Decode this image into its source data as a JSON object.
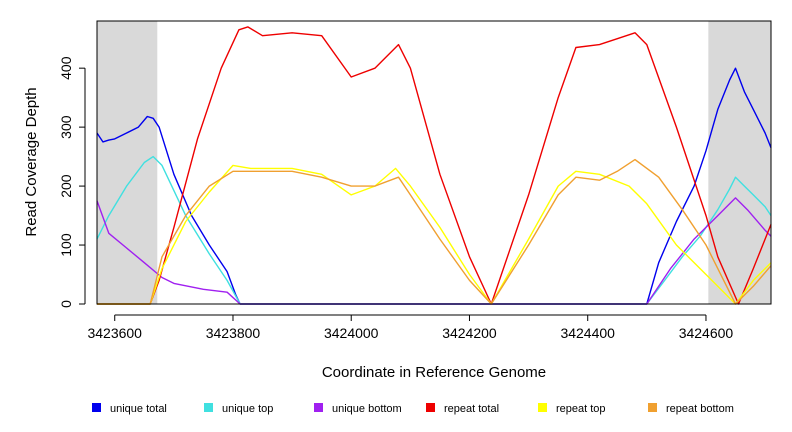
{
  "chart_data": {
    "type": "line",
    "title": "",
    "xlabel": "Coordinate in Reference Genome",
    "ylabel": "Read Coverage Depth",
    "xlim": [
      3423570,
      3424710
    ],
    "ylim": [
      0,
      480
    ],
    "x_ticks": [
      3423600,
      3423800,
      3424000,
      3424200,
      3424400,
      3424600
    ],
    "x_tick_labels": [
      "3423600",
      "3423800",
      "3424000",
      "3424200",
      "3424400",
      "3424600"
    ],
    "y_ticks": [
      0,
      100,
      200,
      300,
      400
    ],
    "y_tick_labels": [
      "0",
      "100",
      "200",
      "300",
      "400"
    ],
    "shaded_regions": [
      {
        "x0": 3423570,
        "x1": 3423672,
        "color": "#d9d9d9"
      },
      {
        "x0": 3424604,
        "x1": 3424710,
        "color": "#d9d9d9"
      }
    ],
    "legend_position": "bottom",
    "series": [
      {
        "name": "unique total",
        "color": "#0000ee",
        "x": [
          3423570,
          3423580,
          3423590,
          3423600,
          3423620,
          3423640,
          3423655,
          3423665,
          3423675,
          3423700,
          3423730,
          3423760,
          3423790,
          3423805,
          3423812,
          3424500,
          3424520,
          3424550,
          3424580,
          3424600,
          3424620,
          3424640,
          3424650,
          3424665,
          3424680,
          3424700,
          3424710
        ],
        "y": [
          290,
          275,
          278,
          280,
          290,
          300,
          318,
          315,
          300,
          220,
          150,
          100,
          55,
          15,
          0,
          0,
          70,
          140,
          200,
          260,
          330,
          380,
          400,
          360,
          330,
          290,
          265
        ]
      },
      {
        "name": "unique top",
        "color": "#40e0e0",
        "x": [
          3423570,
          3423590,
          3423620,
          3423650,
          3423665,
          3423680,
          3423720,
          3423760,
          3423790,
          3423812,
          3424500,
          3424530,
          3424560,
          3424590,
          3424620,
          3424640,
          3424650,
          3424665,
          3424680,
          3424700,
          3424710
        ],
        "y": [
          110,
          150,
          200,
          240,
          250,
          235,
          150,
          85,
          40,
          0,
          0,
          40,
          80,
          115,
          160,
          195,
          215,
          200,
          185,
          165,
          150
        ]
      },
      {
        "name": "unique bottom",
        "color": "#a020f0",
        "x": [
          3423570,
          3423590,
          3423620,
          3423650,
          3423680,
          3423700,
          3423750,
          3423790,
          3423812,
          3424500,
          3424540,
          3424580,
          3424620,
          3424650,
          3424670,
          3424700,
          3424710
        ],
        "y": [
          175,
          120,
          95,
          70,
          45,
          35,
          25,
          20,
          0,
          0,
          60,
          110,
          150,
          180,
          160,
          125,
          115
        ]
      },
      {
        "name": "repeat total",
        "color": "#ee0000",
        "x": [
          3423570,
          3423660,
          3423675,
          3423700,
          3423740,
          3423780,
          3423810,
          3423825,
          3423850,
          3423900,
          3423950,
          3424000,
          3424040,
          3424080,
          3424100,
          3424150,
          3424200,
          3424237,
          3424300,
          3424350,
          3424380,
          3424420,
          3424450,
          3424480,
          3424500,
          3424550,
          3424600,
          3424620,
          3424655,
          3424680,
          3424710
        ],
        "y": [
          0,
          0,
          40,
          130,
          280,
          400,
          465,
          470,
          455,
          460,
          455,
          385,
          400,
          440,
          400,
          220,
          80,
          0,
          185,
          350,
          435,
          440,
          450,
          460,
          440,
          300,
          150,
          80,
          0,
          60,
          135
        ]
      },
      {
        "name": "repeat top",
        "color": "#ffff00",
        "x": [
          3423570,
          3423660,
          3423680,
          3423720,
          3423760,
          3423800,
          3423830,
          3423900,
          3423950,
          3424000,
          3424040,
          3424075,
          3424100,
          3424150,
          3424200,
          3424237,
          3424300,
          3424350,
          3424380,
          3424420,
          3424470,
          3424500,
          3424550,
          3424600,
          3424650,
          3424680,
          3424710
        ],
        "y": [
          0,
          0,
          60,
          140,
          190,
          235,
          230,
          230,
          220,
          185,
          200,
          230,
          200,
          130,
          50,
          0,
          110,
          200,
          225,
          220,
          200,
          170,
          100,
          50,
          0,
          40,
          70
        ]
      },
      {
        "name": "repeat bottom",
        "color": "#f0a030",
        "x": [
          3423570,
          3423660,
          3423680,
          3423720,
          3423760,
          3423800,
          3423830,
          3423900,
          3423950,
          3424000,
          3424040,
          3424080,
          3424100,
          3424150,
          3424200,
          3424237,
          3424300,
          3424350,
          3424380,
          3424420,
          3424450,
          3424480,
          3424520,
          3424560,
          3424600,
          3424650,
          3424680,
          3424710
        ],
        "y": [
          0,
          0,
          80,
          150,
          200,
          225,
          225,
          225,
          215,
          200,
          200,
          215,
          185,
          110,
          40,
          0,
          100,
          185,
          215,
          210,
          225,
          245,
          215,
          160,
          100,
          0,
          30,
          65
        ]
      }
    ]
  }
}
